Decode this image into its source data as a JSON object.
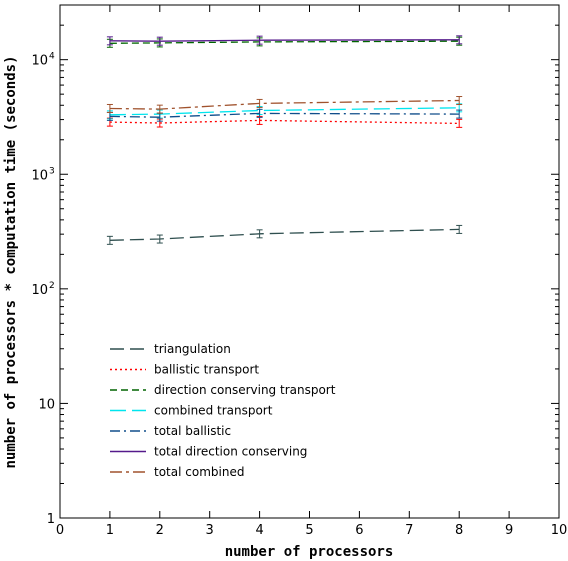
{
  "chart_data": {
    "type": "line",
    "xlabel": "number of processors",
    "ylabel": "number of processors * computation time (seconds)",
    "xlim": [
      0,
      10
    ],
    "ylim": [
      1,
      30000
    ],
    "yscale": "log",
    "x_ticks": [
      0,
      1,
      2,
      3,
      4,
      5,
      6,
      7,
      8,
      9,
      10
    ],
    "y_ticks": [
      {
        "value": 1,
        "label": "1",
        "exp": ""
      },
      {
        "value": 10,
        "label": "10",
        "exp": ""
      },
      {
        "value": 100,
        "label": "10",
        "exp": "2"
      },
      {
        "value": 1000,
        "label": "10",
        "exp": "3"
      },
      {
        "value": 10000,
        "label": "10",
        "exp": "4"
      }
    ],
    "legend_position": "lower-left",
    "x": [
      1,
      2,
      4,
      8
    ],
    "series": [
      {
        "name": "triangulation",
        "values": [
          265,
          272,
          302,
          330
        ],
        "color": "#2f4f4f",
        "dash": "14,6"
      },
      {
        "name": "ballistic transport",
        "values": [
          2850,
          2800,
          2950,
          2780
        ],
        "color": "#ff0000",
        "dash": "2,3"
      },
      {
        "name": "direction conserving transport",
        "values": [
          13900,
          14000,
          14300,
          14500
        ],
        "color": "#006400",
        "dash": "7,4"
      },
      {
        "name": "combined transport",
        "values": [
          3300,
          3350,
          3600,
          3800
        ],
        "color": "#00e5ee",
        "dash": "16,6"
      },
      {
        "name": "total ballistic",
        "values": [
          3200,
          3150,
          3400,
          3350
        ],
        "color": "#104e8b",
        "dash": "10,4,2,4"
      },
      {
        "name": "total direction conserving",
        "values": [
          14600,
          14500,
          14800,
          14900
        ],
        "color": "#551a8b",
        "dash": ""
      },
      {
        "name": "total combined",
        "values": [
          3750,
          3700,
          4150,
          4400
        ],
        "color": "#a0522d",
        "dash": "12,4,3,4"
      }
    ]
  }
}
